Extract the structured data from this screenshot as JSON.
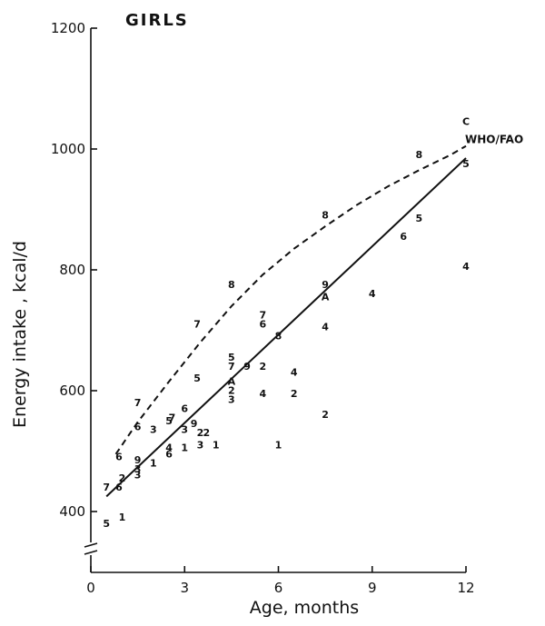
{
  "chart_data": {
    "type": "scatter",
    "title": "GIRLS",
    "xlabel": "Age, months",
    "ylabel": "Energy intake , kcal/d",
    "xlim": [
      0,
      12
    ],
    "ylim": [
      300,
      1200
    ],
    "axis_break": true,
    "x_ticks": [
      {
        "value": 0,
        "label": "0"
      },
      {
        "value": 3,
        "label": "3"
      },
      {
        "value": 6,
        "label": "6"
      },
      {
        "value": 9,
        "label": "9"
      },
      {
        "value": 12,
        "label": "12"
      }
    ],
    "y_ticks": [
      {
        "value": 400,
        "label": "400"
      },
      {
        "value": 600,
        "label": "600"
      },
      {
        "value": 800,
        "label": "800"
      },
      {
        "value": 1000,
        "label": "1000"
      },
      {
        "value": 1200,
        "label": "1200"
      }
    ],
    "points": [
      {
        "x": 0.5,
        "y": 380,
        "label": "5"
      },
      {
        "x": 1.0,
        "y": 390,
        "label": "1"
      },
      {
        "x": 0.5,
        "y": 440,
        "label": "7"
      },
      {
        "x": 0.9,
        "y": 440,
        "label": "6"
      },
      {
        "x": 1.0,
        "y": 455,
        "label": "2"
      },
      {
        "x": 1.5,
        "y": 460,
        "label": "3"
      },
      {
        "x": 1.5,
        "y": 470,
        "label": "3"
      },
      {
        "x": 1.5,
        "y": 485,
        "label": "9"
      },
      {
        "x": 2.0,
        "y": 480,
        "label": "1"
      },
      {
        "x": 0.9,
        "y": 490,
        "label": "6"
      },
      {
        "x": 2.5,
        "y": 495,
        "label": "6"
      },
      {
        "x": 2.5,
        "y": 505,
        "label": "4"
      },
      {
        "x": 3.0,
        "y": 505,
        "label": "1"
      },
      {
        "x": 3.5,
        "y": 510,
        "label": "3"
      },
      {
        "x": 4.0,
        "y": 510,
        "label": "1"
      },
      {
        "x": 1.5,
        "y": 540,
        "label": "6"
      },
      {
        "x": 2.0,
        "y": 535,
        "label": "3"
      },
      {
        "x": 2.5,
        "y": 550,
        "label": "5"
      },
      {
        "x": 2.6,
        "y": 555,
        "label": "7"
      },
      {
        "x": 3.0,
        "y": 535,
        "label": "3"
      },
      {
        "x": 3.3,
        "y": 545,
        "label": "9"
      },
      {
        "x": 3.5,
        "y": 530,
        "label": "2"
      },
      {
        "x": 3.7,
        "y": 530,
        "label": "2"
      },
      {
        "x": 1.5,
        "y": 580,
        "label": "7"
      },
      {
        "x": 3.0,
        "y": 570,
        "label": "6"
      },
      {
        "x": 3.4,
        "y": 620,
        "label": "5"
      },
      {
        "x": 3.4,
        "y": 710,
        "label": "7"
      },
      {
        "x": 4.5,
        "y": 775,
        "label": "8"
      },
      {
        "x": 4.5,
        "y": 585,
        "label": "3"
      },
      {
        "x": 4.5,
        "y": 600,
        "label": "2"
      },
      {
        "x": 4.5,
        "y": 615,
        "label": "A"
      },
      {
        "x": 4.5,
        "y": 640,
        "label": "7"
      },
      {
        "x": 4.5,
        "y": 655,
        "label": "5"
      },
      {
        "x": 5.0,
        "y": 640,
        "label": "9"
      },
      {
        "x": 5.5,
        "y": 640,
        "label": "2"
      },
      {
        "x": 5.5,
        "y": 595,
        "label": "4"
      },
      {
        "x": 5.5,
        "y": 710,
        "label": "6"
      },
      {
        "x": 5.5,
        "y": 725,
        "label": "7"
      },
      {
        "x": 6.0,
        "y": 690,
        "label": "8"
      },
      {
        "x": 6.0,
        "y": 510,
        "label": "1"
      },
      {
        "x": 6.5,
        "y": 630,
        "label": "4"
      },
      {
        "x": 6.5,
        "y": 595,
        "label": "2"
      },
      {
        "x": 7.5,
        "y": 890,
        "label": "8"
      },
      {
        "x": 7.5,
        "y": 775,
        "label": "9"
      },
      {
        "x": 7.5,
        "y": 755,
        "label": "A"
      },
      {
        "x": 7.5,
        "y": 705,
        "label": "4"
      },
      {
        "x": 7.5,
        "y": 560,
        "label": "2"
      },
      {
        "x": 9.0,
        "y": 760,
        "label": "4"
      },
      {
        "x": 10.0,
        "y": 855,
        "label": "6"
      },
      {
        "x": 10.5,
        "y": 990,
        "label": "8"
      },
      {
        "x": 10.5,
        "y": 885,
        "label": "5"
      },
      {
        "x": 12.0,
        "y": 1045,
        "label": "C"
      },
      {
        "x": 12.0,
        "y": 975,
        "label": "5"
      },
      {
        "x": 12.0,
        "y": 805,
        "label": "4"
      }
    ],
    "series": [
      {
        "style": "solid",
        "x": [
          0.5,
          12
        ],
        "y": [
          425,
          985
        ]
      },
      {
        "name": "WHO/FAO",
        "style": "dashed",
        "x": [
          0.8,
          1.5,
          2.5,
          3.5,
          4.5,
          5.5,
          6.5,
          7.5,
          8.5,
          9.5,
          10.5,
          11.5,
          12
        ],
        "y": [
          495,
          548,
          615,
          680,
          740,
          792,
          835,
          872,
          907,
          938,
          965,
          990,
          1005
        ]
      }
    ]
  }
}
